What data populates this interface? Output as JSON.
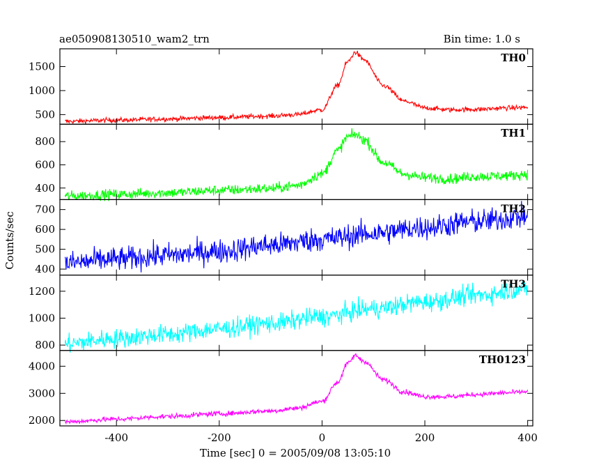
{
  "header": {
    "title": "ae050908130510_wam2_trn",
    "bin_time": "Bin time: 1.0 s"
  },
  "chart_data": {
    "type": "line",
    "xlabel": "Time [sec] 0 = 2005/09/08 13:05:10",
    "ylabel": "Counts/sec",
    "xlim": [
      -510,
      410
    ],
    "x_ticks": [
      -400,
      -200,
      0,
      200,
      400
    ],
    "grid": false,
    "panels": [
      {
        "label": "TH0",
        "color": "#ff0000",
        "ylim": [
          300,
          1870
        ],
        "y_ticks": [
          500,
          1000,
          1500
        ],
        "noise": 25,
        "profile": [
          [
            -500,
            360
          ],
          [
            -400,
            385
          ],
          [
            -300,
            410
          ],
          [
            -200,
            440
          ],
          [
            -100,
            470
          ],
          [
            -50,
            500
          ],
          [
            0,
            600
          ],
          [
            30,
            1100
          ],
          [
            50,
            1600
          ],
          [
            65,
            1800
          ],
          [
            80,
            1650
          ],
          [
            120,
            1100
          ],
          [
            160,
            780
          ],
          [
            200,
            640
          ],
          [
            250,
            600
          ],
          [
            300,
            610
          ],
          [
            360,
            640
          ],
          [
            400,
            650
          ]
        ]
      },
      {
        "label": "TH1",
        "color": "#00ff00",
        "ylim": [
          300,
          950
        ],
        "y_ticks": [
          400,
          600,
          800
        ],
        "noise": 22,
        "profile": [
          [
            -500,
            330
          ],
          [
            -400,
            345
          ],
          [
            -300,
            360
          ],
          [
            -200,
            380
          ],
          [
            -100,
            395
          ],
          [
            -50,
            420
          ],
          [
            0,
            520
          ],
          [
            30,
            720
          ],
          [
            50,
            840
          ],
          [
            65,
            860
          ],
          [
            80,
            820
          ],
          [
            120,
            620
          ],
          [
            160,
            520
          ],
          [
            200,
            490
          ],
          [
            250,
            480
          ],
          [
            300,
            500
          ],
          [
            360,
            505
          ],
          [
            400,
            520
          ]
        ]
      },
      {
        "label": "TH2",
        "color": "#0000ff",
        "ylim": [
          370,
          750
        ],
        "y_ticks": [
          400,
          500,
          600,
          700
        ],
        "noise": 30,
        "profile": [
          [
            -500,
            430
          ],
          [
            -400,
            450
          ],
          [
            -300,
            470
          ],
          [
            -200,
            490
          ],
          [
            -100,
            520
          ],
          [
            0,
            550
          ],
          [
            100,
            580
          ],
          [
            200,
            610
          ],
          [
            300,
            640
          ],
          [
            400,
            665
          ]
        ]
      },
      {
        "label": "TH3",
        "color": "#00ffff",
        "ylim": [
          760,
          1320
        ],
        "y_ticks": [
          800,
          1000,
          1200
        ],
        "noise": 35,
        "profile": [
          [
            -500,
            810
          ],
          [
            -400,
            850
          ],
          [
            -300,
            880
          ],
          [
            -200,
            920
          ],
          [
            -100,
            960
          ],
          [
            0,
            1010
          ],
          [
            100,
            1070
          ],
          [
            200,
            1120
          ],
          [
            300,
            1170
          ],
          [
            400,
            1220
          ]
        ]
      },
      {
        "label": "TH0123",
        "color": "#ff00ff",
        "ylim": [
          1800,
          4580
        ],
        "y_ticks": [
          2000,
          3000,
          4000
        ],
        "noise": 45,
        "profile": [
          [
            -500,
            1950
          ],
          [
            -400,
            2050
          ],
          [
            -300,
            2150
          ],
          [
            -200,
            2250
          ],
          [
            -100,
            2350
          ],
          [
            -50,
            2450
          ],
          [
            0,
            2700
          ],
          [
            30,
            3400
          ],
          [
            50,
            4100
          ],
          [
            65,
            4400
          ],
          [
            80,
            4200
          ],
          [
            120,
            3500
          ],
          [
            160,
            3050
          ],
          [
            200,
            2880
          ],
          [
            250,
            2880
          ],
          [
            300,
            2960
          ],
          [
            360,
            3020
          ],
          [
            400,
            3060
          ]
        ]
      }
    ]
  }
}
